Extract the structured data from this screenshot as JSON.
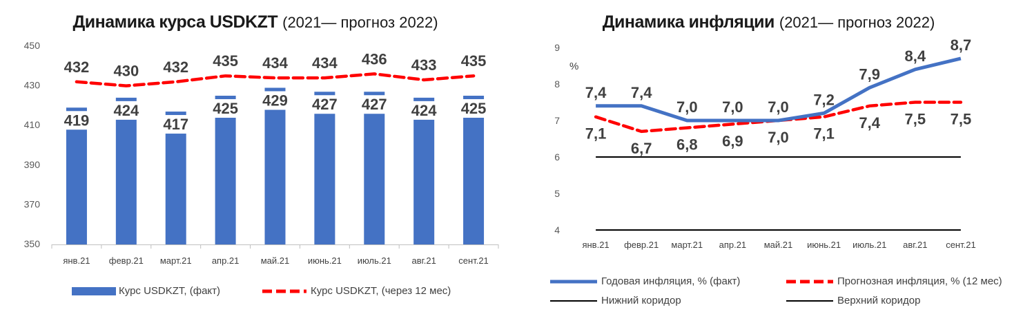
{
  "chart_data": [
    {
      "type": "bar",
      "title": "Динамика курса USDKZT",
      "subtitle": "(2021— прогноз 2022)",
      "categories": [
        "янв.21",
        "февр.21",
        "март.21",
        "апр.21",
        "май.21",
        "июнь.21",
        "июль.21",
        "авг.21",
        "сент.21"
      ],
      "ylim": [
        350,
        450
      ],
      "yticks": [
        "450",
        "430",
        "410",
        "390",
        "370",
        "350"
      ],
      "series": [
        {
          "name": "Курс USDKZT, (факт)",
          "kind": "bar",
          "color": "#4472C4",
          "values": [
            419,
            424,
            417,
            425,
            429,
            427,
            427,
            424,
            425
          ]
        },
        {
          "name": "Курс USDKZT, (через 12 мес)",
          "kind": "dashed-line",
          "color": "#FF0000",
          "values": [
            432,
            430,
            432,
            435,
            434,
            434,
            436,
            433,
            435
          ]
        }
      ],
      "legend": "bottom"
    },
    {
      "type": "line",
      "title": "Динамика инфляции",
      "subtitle": "(2021— прогноз 2022)",
      "ylabel": "%",
      "categories": [
        "янв.21",
        "февр.21",
        "март.21",
        "апр.21",
        "май.21",
        "июнь.21",
        "июль.21",
        "авг.21",
        "сент.21"
      ],
      "ylim": [
        4,
        9
      ],
      "yticks": [
        "9",
        "8",
        "7",
        "6",
        "5",
        "4"
      ],
      "series": [
        {
          "name": "Годовая инфляция, % (факт)",
          "kind": "line",
          "color": "#4472C4",
          "values": [
            7.4,
            7.4,
            7.0,
            7.0,
            7.0,
            7.2,
            7.9,
            8.4,
            8.7
          ],
          "labels": [
            "7,4",
            "7,4",
            "7,0",
            "7,0",
            "7,0",
            "7,2",
            "7,9",
            "8,4",
            "8,7"
          ]
        },
        {
          "name": "Прогнозная инфляция, % (12 мес)",
          "kind": "dashed-line",
          "color": "#FF0000",
          "values": [
            7.1,
            6.7,
            6.8,
            6.9,
            7.0,
            7.1,
            7.4,
            7.5,
            7.5
          ],
          "labels": [
            "7,1",
            "6,7",
            "6,8",
            "6,9",
            "7,0",
            "7,1",
            "7,4",
            "7,5",
            "7,5"
          ]
        },
        {
          "name": "Нижний коридор",
          "kind": "line",
          "color": "#000000",
          "values": [
            6,
            6,
            6,
            6,
            6,
            6,
            6,
            6,
            6
          ]
        },
        {
          "name": "Верхний коридор",
          "kind": "line",
          "color": "#000000",
          "values": [
            4,
            4,
            4,
            4,
            4,
            4,
            4,
            4,
            4
          ]
        }
      ],
      "legend": "bottom"
    }
  ]
}
